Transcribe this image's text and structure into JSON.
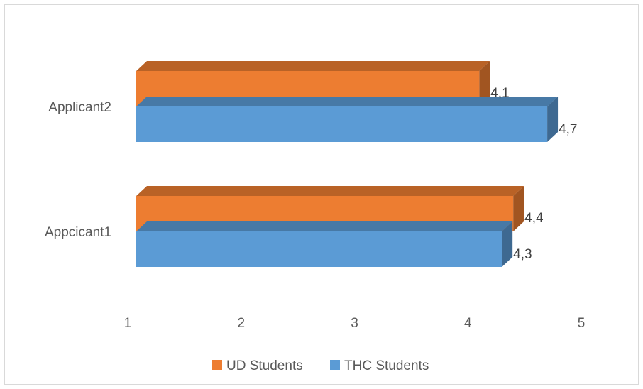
{
  "chart_data": {
    "type": "bar",
    "orientation": "horizontal",
    "style": "3d",
    "title": "",
    "xlabel": "",
    "ylabel": "",
    "categories": [
      "Appcicant1",
      "Applicant2"
    ],
    "series": [
      {
        "name": "THC Students",
        "color": "#5B9BD5",
        "values": [
          4.3,
          4.7
        ],
        "labels": [
          "4,3",
          "4,7"
        ]
      },
      {
        "name": "UD Students",
        "color": "#ED7D31",
        "values": [
          4.4,
          4.1
        ],
        "labels": [
          "4,4",
          "4,1"
        ]
      }
    ],
    "xlim": [
      1,
      5
    ],
    "xticks": [
      "1",
      "2",
      "3",
      "4",
      "5"
    ],
    "grid": false,
    "legend": "bottom",
    "legend_order": [
      "UD Students",
      "THC Students"
    ]
  }
}
